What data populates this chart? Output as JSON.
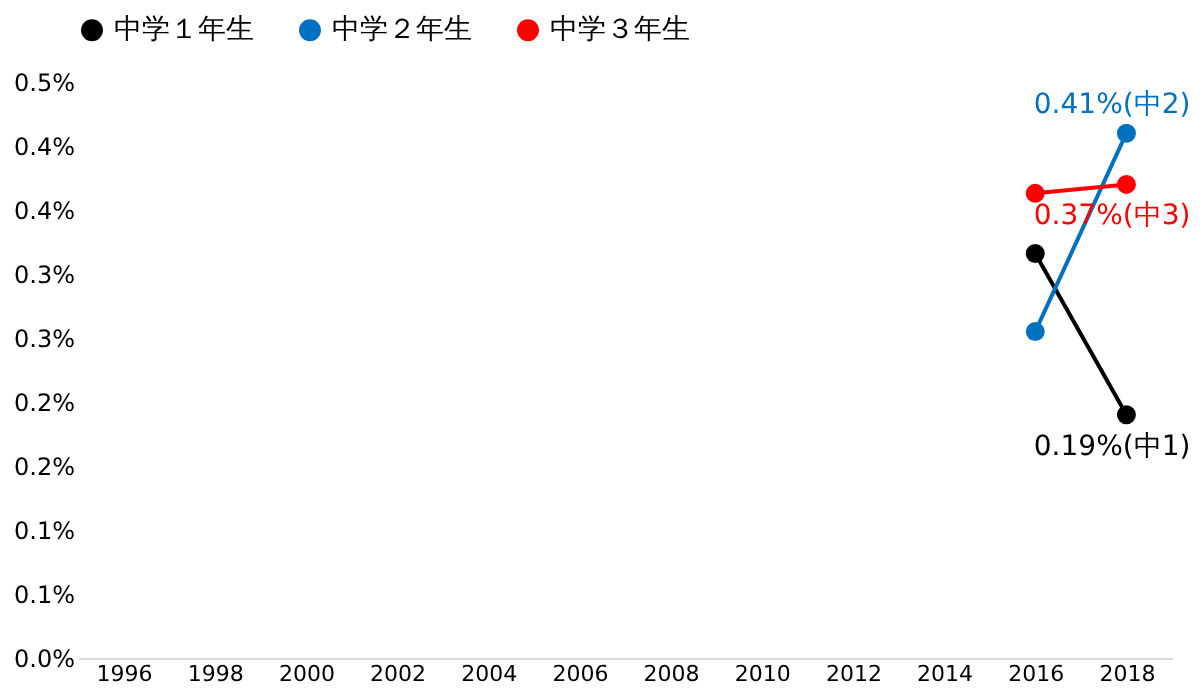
{
  "chart_data": {
    "type": "line",
    "categories": [
      "1996",
      "1998",
      "2000",
      "2002",
      "2004",
      "2006",
      "2008",
      "2010",
      "2012",
      "2014",
      "2016",
      "2018"
    ],
    "series": [
      {
        "name": "中学１年生",
        "color": "#000000",
        "values": [
          null,
          null,
          null,
          null,
          null,
          null,
          null,
          null,
          null,
          null,
          0.316,
          0.19
        ]
      },
      {
        "name": "中学２年生",
        "color": "#0070c0",
        "values": [
          null,
          null,
          null,
          null,
          null,
          null,
          null,
          null,
          null,
          null,
          0.255,
          0.41
        ]
      },
      {
        "name": "中学３年生",
        "color": "#ff0000",
        "values": [
          null,
          null,
          null,
          null,
          null,
          null,
          null,
          null,
          null,
          null,
          0.363,
          0.37
        ]
      }
    ],
    "ylim": [
      0,
      0.45
    ],
    "yticks": [
      {
        "value": 0,
        "label": "0.0%"
      },
      {
        "value": 0.05,
        "label": "0.1%"
      },
      {
        "value": 0.1,
        "label": "0.1%"
      },
      {
        "value": 0.15,
        "label": "0.2%"
      },
      {
        "value": 0.2,
        "label": "0.2%"
      },
      {
        "value": 0.25,
        "label": "0.3%"
      },
      {
        "value": 0.3,
        "label": "0.3%"
      },
      {
        "value": 0.35,
        "label": "0.4%"
      },
      {
        "value": 0.4,
        "label": "0.4%"
      },
      {
        "value": 0.45,
        "label": "0.5%"
      }
    ],
    "annotations": [
      {
        "text": "0.19%(中1)",
        "x": "2018",
        "y": 0.19
      },
      {
        "text": "0.41%(中2)",
        "x": "2018",
        "y": 0.41
      },
      {
        "text": "0.37%(中3)",
        "x": "2018",
        "y": 0.37
      }
    ],
    "legend": "top",
    "marker": "circle",
    "line_style": "solid",
    "grid": false
  }
}
